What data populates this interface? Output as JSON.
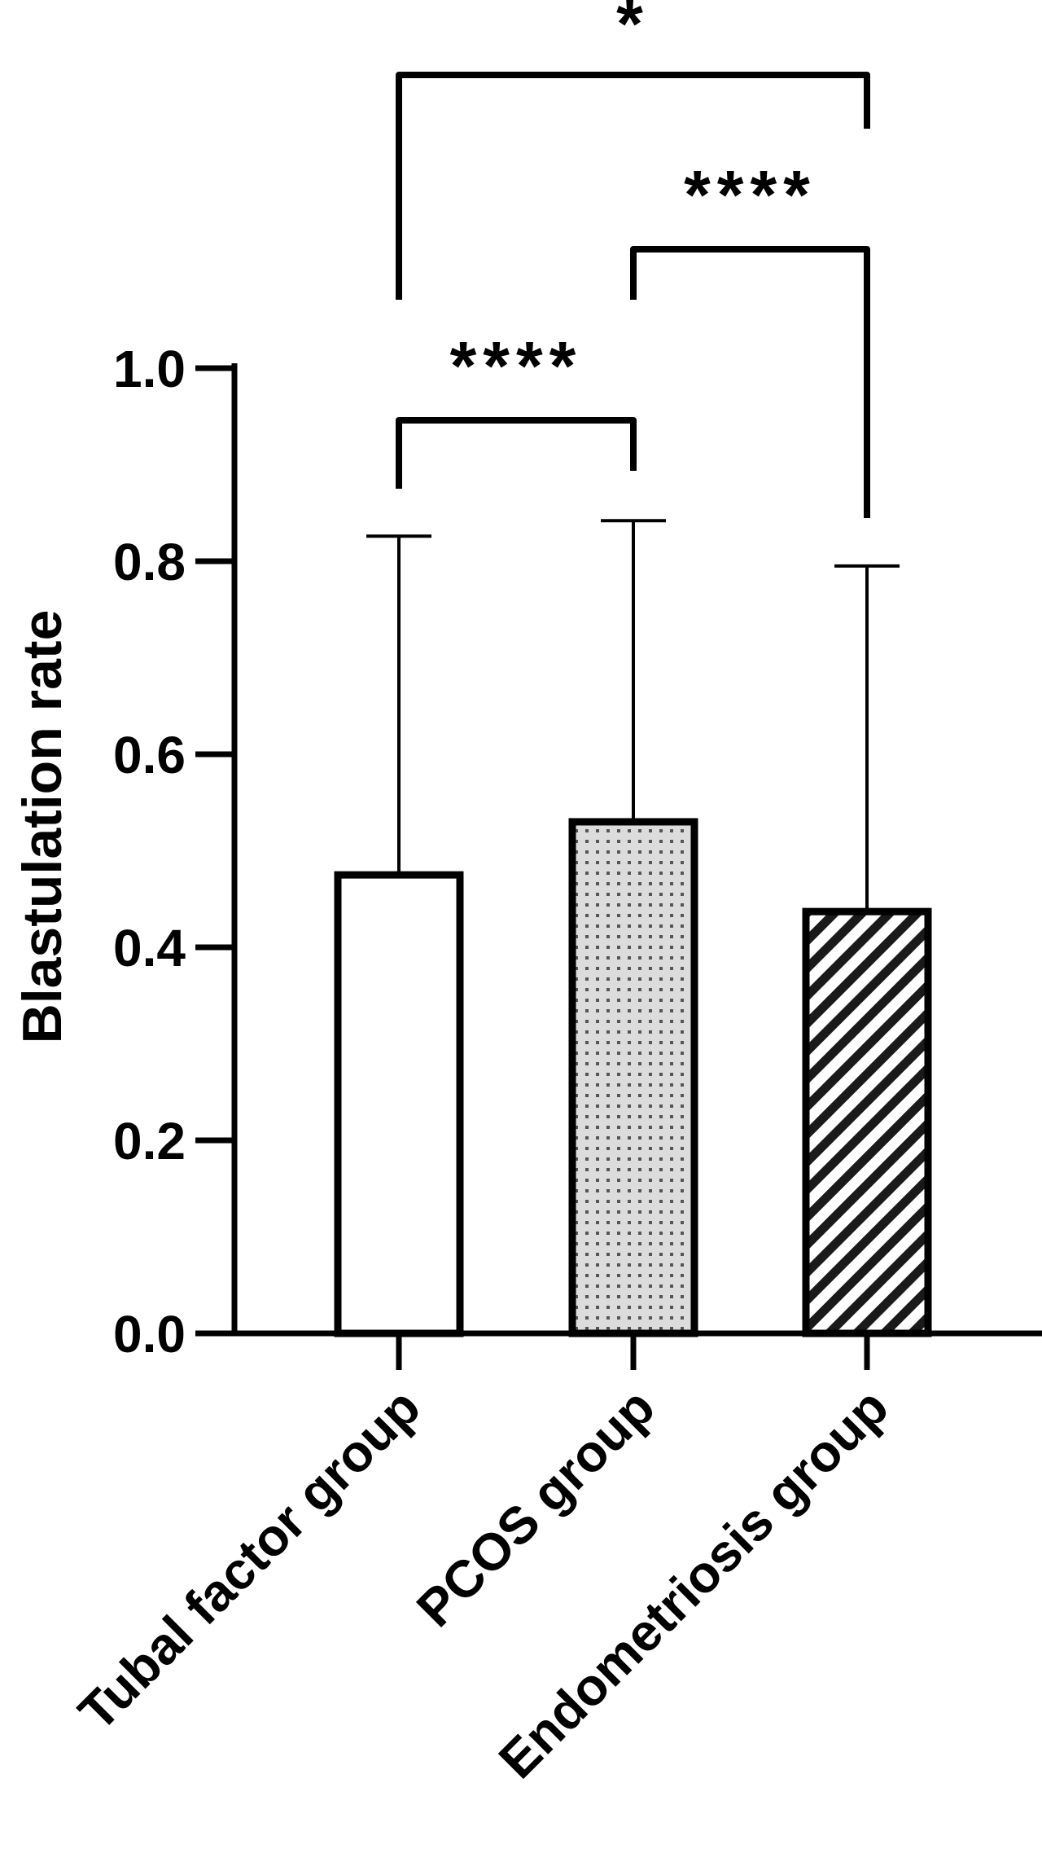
{
  "chart_data": {
    "type": "bar",
    "title": "",
    "xlabel": "",
    "ylabel": "Blastulation rate",
    "ylim": [
      0,
      1.0
    ],
    "yticks": [
      "0.0",
      "0.2",
      "0.4",
      "0.6",
      "0.8",
      "1.0"
    ],
    "grid": false,
    "categories": [
      "Tubal factor group",
      "PCOS group",
      "Endometriosis group"
    ],
    "values": [
      0.475,
      0.53,
      0.437
    ],
    "error_upper": [
      0.826,
      0.842,
      0.795
    ],
    "fill_patterns": [
      "none",
      "dots",
      "diagonal-hatch"
    ],
    "comparisons": [
      {
        "from": 0,
        "to": 1,
        "label": "****"
      },
      {
        "from": 1,
        "to": 2,
        "label": "****"
      },
      {
        "from": 0,
        "to": 2,
        "label": "*"
      }
    ]
  }
}
